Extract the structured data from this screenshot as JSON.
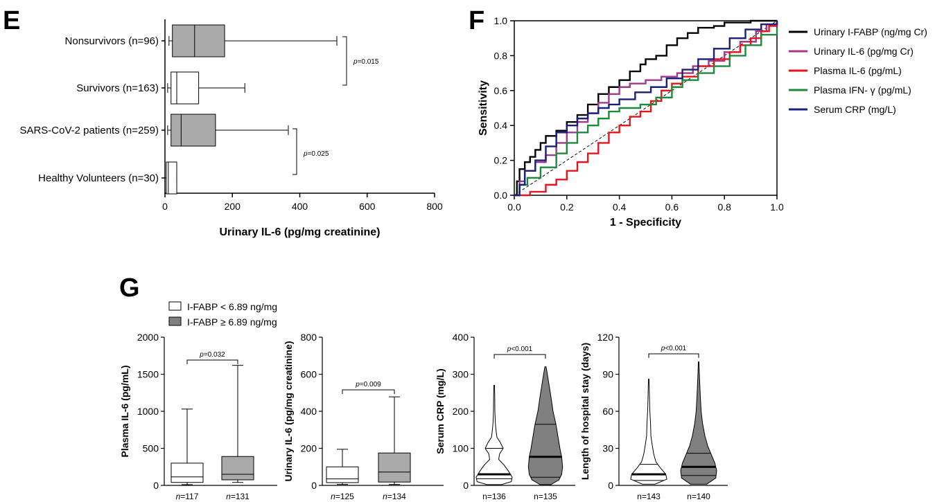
{
  "chart_data": [
    {
      "panel": "E",
      "type": "boxplot",
      "orientation": "horizontal",
      "categories": [
        "Nonsurvivors (n=96)",
        "Survivors (n=163)",
        "SARS-CoV-2 patients (n=259)",
        "Healthy Volunteers (n=30)"
      ],
      "boxes": [
        {
          "min": 12,
          "q1": 22,
          "median": 88,
          "q3": 177,
          "max": 510,
          "fill": "#aaaaaa"
        },
        {
          "min": 8,
          "q1": 18,
          "median": 35,
          "q3": 100,
          "max": 237,
          "fill": "#ffffff"
        },
        {
          "min": 8,
          "q1": 18,
          "median": 48,
          "q3": 150,
          "max": 366,
          "fill": "#aaaaaa"
        },
        {
          "min": 0,
          "q1": 4,
          "median": 10,
          "q3": 35,
          "max": 35,
          "fill": "#ffffff"
        }
      ],
      "xlabel": "Urinary IL-6 (pg/mg creatinine)",
      "xlim": [
        0,
        800
      ],
      "xticks": [
        0,
        200,
        400,
        600,
        800
      ],
      "annotations": [
        {
          "label": "p=0.015",
          "from": 0,
          "to": 1
        },
        {
          "label": "p=0.025",
          "from": 2,
          "to": 3
        }
      ]
    },
    {
      "panel": "F",
      "type": "line",
      "xlabel": "1 - Specificity",
      "ylabel": "Sensitivity",
      "xlim": [
        0,
        1
      ],
      "ylim": [
        0,
        1
      ],
      "xticks": [
        0.0,
        0.2,
        0.4,
        0.6,
        0.8,
        1.0
      ],
      "yticks": [
        0.0,
        0.2,
        0.4,
        0.6,
        0.8,
        1.0
      ],
      "tick_labels": [
        "0.0",
        "0.2",
        "0.4",
        "0.6",
        "0.8",
        "1.0"
      ],
      "reference_line": true,
      "legend_position": "right",
      "series": [
        {
          "name": "Urinary I-FABP (ng/mg Cr)",
          "color": "#000000",
          "points": [
            [
              0,
              0
            ],
            [
              0.01,
              0.08
            ],
            [
              0.02,
              0.15
            ],
            [
              0.04,
              0.19
            ],
            [
              0.06,
              0.22
            ],
            [
              0.08,
              0.26
            ],
            [
              0.1,
              0.3
            ],
            [
              0.12,
              0.34
            ],
            [
              0.16,
              0.37
            ],
            [
              0.2,
              0.42
            ],
            [
              0.24,
              0.46
            ],
            [
              0.28,
              0.52
            ],
            [
              0.32,
              0.58
            ],
            [
              0.36,
              0.62
            ],
            [
              0.4,
              0.66
            ],
            [
              0.44,
              0.71
            ],
            [
              0.48,
              0.75
            ],
            [
              0.5,
              0.78
            ],
            [
              0.54,
              0.8
            ],
            [
              0.58,
              0.86
            ],
            [
              0.62,
              0.9
            ],
            [
              0.66,
              0.93
            ],
            [
              0.7,
              0.96
            ],
            [
              0.76,
              0.97
            ],
            [
              0.8,
              0.99
            ],
            [
              0.9,
              1.0
            ],
            [
              1.0,
              1.0
            ]
          ]
        },
        {
          "name": "Urinary IL-6 (pg/mg Cr)",
          "color": "#a03a8c",
          "points": [
            [
              0,
              0
            ],
            [
              0.02,
              0.08
            ],
            [
              0.04,
              0.14
            ],
            [
              0.08,
              0.19
            ],
            [
              0.12,
              0.23
            ],
            [
              0.16,
              0.3
            ],
            [
              0.2,
              0.36
            ],
            [
              0.24,
              0.42
            ],
            [
              0.28,
              0.47
            ],
            [
              0.32,
              0.53
            ],
            [
              0.36,
              0.58
            ],
            [
              0.4,
              0.62
            ],
            [
              0.44,
              0.64
            ],
            [
              0.5,
              0.66
            ],
            [
              0.56,
              0.68
            ],
            [
              0.62,
              0.7
            ],
            [
              0.68,
              0.74
            ],
            [
              0.74,
              0.77
            ],
            [
              0.8,
              0.82
            ],
            [
              0.86,
              0.88
            ],
            [
              0.92,
              0.94
            ],
            [
              0.96,
              0.98
            ],
            [
              1.0,
              1.0
            ]
          ]
        },
        {
          "name": "Plasma IL-6 (pg/mL)",
          "color": "#e8141d",
          "points": [
            [
              0,
              0
            ],
            [
              0.06,
              0.02
            ],
            [
              0.12,
              0.06
            ],
            [
              0.16,
              0.09
            ],
            [
              0.2,
              0.14
            ],
            [
              0.24,
              0.19
            ],
            [
              0.28,
              0.24
            ],
            [
              0.32,
              0.3
            ],
            [
              0.36,
              0.36
            ],
            [
              0.4,
              0.4
            ],
            [
              0.44,
              0.45
            ],
            [
              0.48,
              0.48
            ],
            [
              0.52,
              0.54
            ],
            [
              0.56,
              0.6
            ],
            [
              0.6,
              0.64
            ],
            [
              0.64,
              0.68
            ],
            [
              0.7,
              0.74
            ],
            [
              0.76,
              0.78
            ],
            [
              0.82,
              0.82
            ],
            [
              0.86,
              0.86
            ],
            [
              0.9,
              0.9
            ],
            [
              0.94,
              0.94
            ],
            [
              0.97,
              0.97
            ],
            [
              1.0,
              1.0
            ]
          ]
        },
        {
          "name": "Plasma IFN- γ (pg/mL)",
          "color": "#1d8a3b",
          "points": [
            [
              0,
              0
            ],
            [
              0.02,
              0.06
            ],
            [
              0.05,
              0.1
            ],
            [
              0.1,
              0.16
            ],
            [
              0.16,
              0.24
            ],
            [
              0.2,
              0.3
            ],
            [
              0.24,
              0.36
            ],
            [
              0.28,
              0.4
            ],
            [
              0.32,
              0.44
            ],
            [
              0.36,
              0.48
            ],
            [
              0.4,
              0.5
            ],
            [
              0.48,
              0.52
            ],
            [
              0.54,
              0.56
            ],
            [
              0.6,
              0.62
            ],
            [
              0.64,
              0.66
            ],
            [
              0.7,
              0.7
            ],
            [
              0.76,
              0.74
            ],
            [
              0.82,
              0.8
            ],
            [
              0.88,
              0.86
            ],
            [
              0.94,
              0.92
            ],
            [
              1.0,
              0.96
            ]
          ]
        },
        {
          "name": "Serum CRP (mg/L)",
          "color": "#1a1f7a",
          "points": [
            [
              0,
              0
            ],
            [
              0.02,
              0.06
            ],
            [
              0.04,
              0.14
            ],
            [
              0.08,
              0.2
            ],
            [
              0.12,
              0.28
            ],
            [
              0.16,
              0.36
            ],
            [
              0.2,
              0.4
            ],
            [
              0.24,
              0.44
            ],
            [
              0.28,
              0.47
            ],
            [
              0.32,
              0.5
            ],
            [
              0.36,
              0.52
            ],
            [
              0.4,
              0.55
            ],
            [
              0.46,
              0.59
            ],
            [
              0.52,
              0.62
            ],
            [
              0.58,
              0.67
            ],
            [
              0.64,
              0.72
            ],
            [
              0.7,
              0.78
            ],
            [
              0.76,
              0.84
            ],
            [
              0.82,
              0.9
            ],
            [
              0.88,
              0.95
            ],
            [
              0.94,
              0.98
            ],
            [
              1.0,
              1.0
            ]
          ]
        }
      ]
    },
    {
      "panel": "G",
      "type": "boxplot",
      "legend": [
        {
          "label": "I-FABP < 6.89 ng/mg",
          "fill": "#ffffff"
        },
        {
          "label": "I-FABP ≥ 6.89 ng/mg",
          "fill": "#808080"
        }
      ],
      "ylabel": "Plasma IL-6 (pg/mL)",
      "ylim": [
        0,
        2000
      ],
      "yticks": [
        0,
        500,
        1000,
        1500,
        2000
      ],
      "p_value": "p=0.032",
      "groups": [
        {
          "n_label": "n=117",
          "fill": "#ffffff",
          "min": 10,
          "q1": 40,
          "median": 115,
          "q3": 300,
          "max": 1030
        },
        {
          "n_label": "n=131",
          "fill": "#aaaaaa",
          "min": 40,
          "q1": 75,
          "median": 150,
          "q3": 390,
          "max": 1620
        }
      ]
    },
    {
      "panel": "G",
      "type": "boxplot",
      "ylabel": "Urinary IL-6 (pg/mg creatinine)",
      "ylim": [
        0,
        800
      ],
      "yticks": [
        0,
        200,
        400,
        600,
        800
      ],
      "p_value": "p=0.009",
      "groups": [
        {
          "n_label": "n=125",
          "fill": "#ffffff",
          "min": 5,
          "q1": 15,
          "median": 35,
          "q3": 100,
          "max": 195
        },
        {
          "n_label": "n=134",
          "fill": "#aaaaaa",
          "min": 5,
          "q1": 18,
          "median": 72,
          "q3": 175,
          "max": 478
        }
      ]
    },
    {
      "panel": "G",
      "type": "violin",
      "ylabel": "Serum CRP (mg/L)",
      "ylim": [
        0,
        400
      ],
      "yticks": [
        0,
        100,
        200,
        300,
        400
      ],
      "p_value": "p<0.001",
      "groups": [
        {
          "n_label": "n=136",
          "fill": "#ffffff",
          "min": 2,
          "q1": 18,
          "median": 30,
          "q3": 100,
          "max": 270,
          "profile": [
            [
              2,
              0.4
            ],
            [
              10,
              0.95
            ],
            [
              22,
              1.0
            ],
            [
              38,
              0.8
            ],
            [
              55,
              0.55
            ],
            [
              70,
              0.25
            ],
            [
              85,
              0.3
            ],
            [
              100,
              0.5
            ],
            [
              115,
              0.35
            ],
            [
              130,
              0.15
            ],
            [
              150,
              0.1
            ],
            [
              170,
              0.06
            ],
            [
              200,
              0.04
            ],
            [
              240,
              0.03
            ],
            [
              270,
              0.02
            ]
          ]
        },
        {
          "n_label": "n=135",
          "fill": "#808080",
          "min": 2,
          "q1": 22,
          "median": 77,
          "q3": 165,
          "max": 320,
          "profile": [
            [
              2,
              0.3
            ],
            [
              15,
              0.75
            ],
            [
              30,
              0.9
            ],
            [
              50,
              0.95
            ],
            [
              77,
              0.9
            ],
            [
              100,
              0.8
            ],
            [
              130,
              0.7
            ],
            [
              165,
              0.58
            ],
            [
              200,
              0.42
            ],
            [
              240,
              0.3
            ],
            [
              280,
              0.17
            ],
            [
              305,
              0.09
            ],
            [
              320,
              0.03
            ]
          ]
        }
      ]
    },
    {
      "panel": "G",
      "type": "violin",
      "ylabel": "Length of hospital stay (days)",
      "ylim": [
        0,
        120
      ],
      "yticks": [
        0,
        30,
        60,
        90,
        120
      ],
      "p_value": "p<0.001",
      "groups": [
        {
          "n_label": "n=143",
          "fill": "#ffffff",
          "min": 1,
          "q1": 4,
          "median": 9,
          "q3": 17,
          "max": 86,
          "profile": [
            [
              1,
              0.35
            ],
            [
              5,
              1.0
            ],
            [
              9,
              0.95
            ],
            [
              14,
              0.65
            ],
            [
              19,
              0.4
            ],
            [
              25,
              0.28
            ],
            [
              32,
              0.2
            ],
            [
              40,
              0.12
            ],
            [
              50,
              0.1
            ],
            [
              60,
              0.06
            ],
            [
              72,
              0.04
            ],
            [
              86,
              0.02
            ]
          ]
        },
        {
          "n_label": "n=140",
          "fill": "#808080",
          "min": 1,
          "q1": 8,
          "median": 15,
          "q3": 26,
          "max": 100,
          "profile": [
            [
              1,
              0.45
            ],
            [
              6,
              0.95
            ],
            [
              12,
              1.0
            ],
            [
              18,
              0.9
            ],
            [
              25,
              0.7
            ],
            [
              32,
              0.5
            ],
            [
              40,
              0.35
            ],
            [
              50,
              0.22
            ],
            [
              60,
              0.14
            ],
            [
              70,
              0.1
            ],
            [
              80,
              0.07
            ],
            [
              90,
              0.04
            ],
            [
              100,
              0.02
            ]
          ]
        }
      ]
    }
  ],
  "panel_letters": {
    "e": "E",
    "f": "F",
    "g": "G"
  }
}
